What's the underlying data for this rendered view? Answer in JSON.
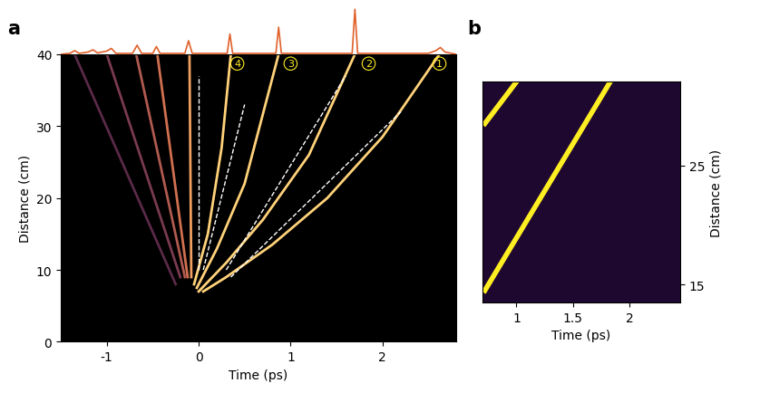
{
  "chart_data": [
    {
      "type": "line",
      "title": "a",
      "xlabel": "Time (ps)",
      "ylabel": "Distance (cm)",
      "xlim": [
        -1.5,
        2.8
      ],
      "ylim": [
        0,
        40
      ],
      "xticks": [
        -1,
        0,
        1,
        2
      ],
      "yticks": [
        0,
        10,
        20,
        30,
        40
      ],
      "series": [
        {
          "x": [
            0.05,
            0.3,
            0.8,
            1.4,
            2.0,
            2.62
          ],
          "values": [
            7,
            9,
            13.5,
            20,
            28.5,
            40
          ],
          "color": "#ffd27a",
          "line_style": "solid"
        },
        {
          "x": [
            0.0,
            0.3,
            0.7,
            1.2,
            1.7
          ],
          "values": [
            7,
            11,
            17,
            26,
            40
          ],
          "color": "#ffd27a",
          "line_style": "solid"
        },
        {
          "x": [
            -0.02,
            0.2,
            0.5,
            0.87
          ],
          "values": [
            7.5,
            13,
            22,
            40
          ],
          "color": "#ffd27a",
          "line_style": "solid"
        },
        {
          "x": [
            -0.05,
            0.1,
            0.25,
            0.35
          ],
          "values": [
            8,
            15,
            27,
            40
          ],
          "color": "#ffd27a",
          "line_style": "solid"
        },
        {
          "x": [
            -0.08,
            -0.1
          ],
          "values": [
            9,
            40
          ],
          "color": "#f0a060",
          "line_style": "solid"
        },
        {
          "x": [
            -0.12,
            -0.45
          ],
          "values": [
            9,
            40
          ],
          "color": "#d07050",
          "line_style": "solid"
        },
        {
          "x": [
            -0.15,
            -0.68
          ],
          "values": [
            9,
            40
          ],
          "color": "#b05a50",
          "line_style": "solid"
        },
        {
          "x": [
            -0.2,
            -1.0
          ],
          "values": [
            9,
            40
          ],
          "color": "#7a3a50",
          "line_style": "solid"
        },
        {
          "x": [
            -0.25,
            -1.35
          ],
          "values": [
            8,
            40
          ],
          "color": "#5a2a48",
          "line_style": "solid"
        },
        {
          "x": [
            0.35,
            2.2
          ],
          "values": [
            9,
            32
          ],
          "color": "#ffffff",
          "line_style": "dashed"
        },
        {
          "x": [
            0.3,
            1.6
          ],
          "values": [
            10,
            37
          ],
          "color": "#ffffff",
          "line_style": "dashed"
        },
        {
          "x": [
            0.05,
            0.5
          ],
          "values": [
            10,
            33
          ],
          "color": "#ffffff",
          "line_style": "dashed"
        },
        {
          "x": [
            0.0,
            0.0
          ],
          "values": [
            10,
            37
          ],
          "color": "#ffffff",
          "line_style": "dashed"
        }
      ],
      "annotations": [
        {
          "text": "1",
          "x": 2.62,
          "y": 38.7
        },
        {
          "text": "2",
          "x": 1.85,
          "y": 38.7
        },
        {
          "text": "3",
          "x": 1.0,
          "y": 38.7
        },
        {
          "text": "4",
          "x": 0.42,
          "y": 38.7
        }
      ]
    },
    {
      "type": "line",
      "xlim": [
        -1.5,
        2.8
      ],
      "ylim": [
        0,
        1.05
      ],
      "tick_labels": false,
      "series": [
        {
          "x": [
            -1.5,
            -1.4,
            -1.35,
            -1.3,
            -1.2,
            -1.15,
            -1.1,
            -1.0,
            -0.95,
            -0.9,
            -0.72,
            -0.67,
            -0.62,
            -0.5,
            -0.46,
            -0.42,
            -0.15,
            -0.11,
            -0.07,
            0.31,
            0.34,
            0.37,
            0.84,
            0.87,
            0.9,
            1.67,
            1.7,
            1.73,
            2.5,
            2.58,
            2.63,
            2.68,
            2.8
          ],
          "values": [
            0.0,
            0.02,
            0.08,
            0.02,
            0.05,
            0.1,
            0.03,
            0.07,
            0.13,
            0.02,
            0.02,
            0.2,
            0.02,
            0.02,
            0.17,
            0.02,
            0.02,
            0.3,
            0.02,
            0.02,
            0.45,
            0.02,
            0.02,
            0.6,
            0.02,
            0.02,
            1.0,
            0.02,
            0.02,
            0.08,
            0.15,
            0.05,
            0.0
          ],
          "color": "#e0602a",
          "line_style": "solid"
        }
      ]
    },
    {
      "type": "line",
      "title": "b",
      "xlabel": "Time (ps)",
      "ylabel": "Distance (cm)",
      "xlim": [
        0.7,
        2.45
      ],
      "ylim": [
        13.5,
        32
      ],
      "xticks": [
        1,
        1.5,
        2
      ],
      "yticks": [
        15,
        25
      ],
      "series": [
        {
          "x": [
            0.72,
            1.0
          ],
          "values": [
            28.5,
            32
          ],
          "color": "#ffee22",
          "line_style": "solid"
        },
        {
          "x": [
            0.72,
            1.83
          ],
          "values": [
            14.5,
            32
          ],
          "color": "#ffee22",
          "line_style": "solid"
        }
      ]
    }
  ]
}
